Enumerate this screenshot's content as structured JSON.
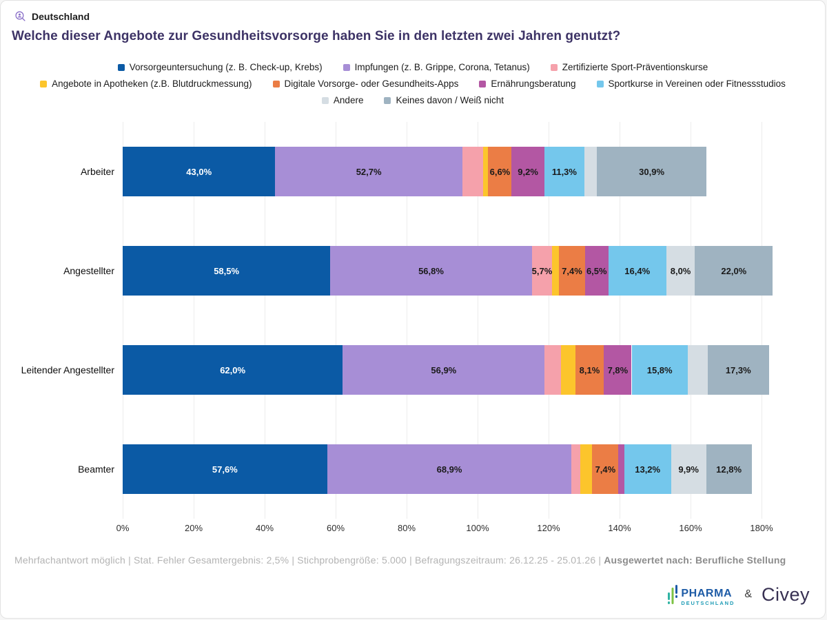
{
  "header": {
    "region_label": "Deutschland",
    "title": "Welche dieser Angebote zur Gesundheitsvorsorge haben Sie in den letzten zwei Jahren genutzt?"
  },
  "chart_data": {
    "type": "bar",
    "orientation": "horizontal-stacked",
    "title": "Welche dieser Angebote zur Gesundheitsvorsorge haben Sie in den letzten zwei Jahren genutzt?",
    "categories": [
      "Arbeiter",
      "Angestellter",
      "Leitender Angestellter",
      "Beamter"
    ],
    "series": [
      {
        "name": "Vorsorgeuntersuchung (z. B. Check-up, Krebs)",
        "color": "#0b5aa5",
        "label_color": "#ffffff",
        "values": [
          43.0,
          58.5,
          62.0,
          57.6
        ],
        "labels": [
          "43,0%",
          "58,5%",
          "62,0%",
          "57,6%"
        ]
      },
      {
        "name": "Impfungen (z. B. Grippe, Corona, Tetanus)",
        "color": "#a78ed6",
        "label_color": "#1a1a1a",
        "values": [
          52.7,
          56.8,
          56.9,
          68.9
        ],
        "labels": [
          "52,7%",
          "56,8%",
          "56,9%",
          "68,9%"
        ]
      },
      {
        "name": "Zertifizierte Sport-Präventionskurse",
        "color": "#f5a1ab",
        "label_color": "#1a1a1a",
        "values": [
          5.8,
          5.7,
          4.5,
          2.5
        ],
        "labels": [
          "",
          "5,7%",
          "",
          ""
        ]
      },
      {
        "name": "Angebote in Apotheken (z.B. Blutdruckmessung)",
        "color": "#fcc52c",
        "label_color": "#1a1a1a",
        "values": [
          1.5,
          1.9,
          4.1,
          3.3
        ],
        "labels": [
          "",
          "",
          "",
          ""
        ]
      },
      {
        "name": "Digitale Vorsorge- oder Gesundheits-Apps",
        "color": "#eb7d45",
        "label_color": "#1a1a1a",
        "values": [
          6.6,
          7.4,
          8.1,
          7.4
        ],
        "labels": [
          "6,6%",
          "7,4%",
          "8,1%",
          "7,4%"
        ]
      },
      {
        "name": "Ernährungsberatung",
        "color": "#b357a3",
        "label_color": "#1a1a1a",
        "values": [
          9.2,
          6.5,
          7.8,
          1.6
        ],
        "labels": [
          "9,2%",
          "6,5%",
          "7,8%",
          ""
        ]
      },
      {
        "name": "Sportkurse in Vereinen oder Fitnessstudios",
        "color": "#74c7ec",
        "label_color": "#1a1a1a",
        "values": [
          11.3,
          16.4,
          15.8,
          13.2
        ],
        "labels": [
          "11,3%",
          "16,4%",
          "15,8%",
          "13,2%"
        ]
      },
      {
        "name": "Andere",
        "color": "#d5dde3",
        "label_color": "#1a1a1a",
        "values": [
          3.5,
          8.0,
          5.6,
          9.9
        ],
        "labels": [
          "",
          "8,0%",
          "",
          "9,9%"
        ]
      },
      {
        "name": "Keines davon / Weiß nicht",
        "color": "#9fb3c1",
        "label_color": "#1a1a1a",
        "values": [
          30.9,
          22.0,
          17.3,
          12.8
        ],
        "labels": [
          "30,9%",
          "22,0%",
          "17,3%",
          "12,8%"
        ]
      }
    ],
    "legend_rows": [
      [
        0,
        1,
        2
      ],
      [
        3,
        4,
        5,
        6
      ],
      [
        7,
        8
      ]
    ],
    "legend_position": "top",
    "grid": true,
    "x_axis": {
      "ticks": [
        "0%",
        "20%",
        "40%",
        "60%",
        "80%",
        "100%",
        "120%",
        "140%",
        "160%",
        "180%"
      ],
      "tick_step": 20,
      "max": 180
    }
  },
  "footer": {
    "text": "Mehrfachantwort möglich | Stat. Fehler Gesamtergebnis: 2,5% | Stichprobengröße: 5.000 | Befragungszeitraum: 26.12.25 - 25.01.26 |",
    "highlight": "Ausgewertet nach: Berufliche Stellung"
  },
  "branding": {
    "partner_name_line1": "PHARMA",
    "partner_name_line2": "DEUTSCHLAND",
    "separator": "&",
    "provider_name": "Civey"
  }
}
